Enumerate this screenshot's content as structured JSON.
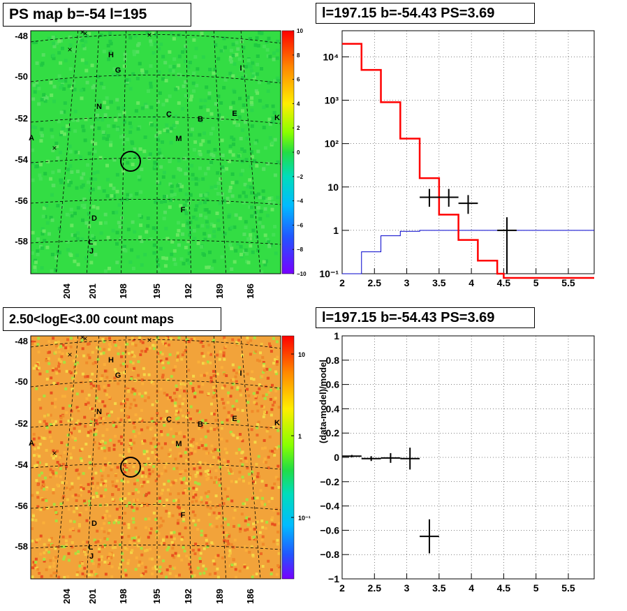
{
  "panels": {
    "ps_map_title": "PS map b=-54 l=195",
    "count_map_title": "2.50<logE<3.00 count maps",
    "spectrum_title": "l=197.15 b=-54.43 PS=3.69",
    "residual_title": "l=197.15 b=-54.43 PS=3.69"
  },
  "map_axes": {
    "y_ticks": [
      "-48",
      "-50",
      "-52",
      "-54",
      "-56",
      "-58"
    ],
    "x_ticks": [
      "204",
      "201",
      "198",
      "195",
      "192",
      "189",
      "186"
    ]
  },
  "source_labels": [
    "H",
    "G",
    "I",
    "N",
    "C",
    "B",
    "E",
    "K",
    "A",
    "M",
    "F",
    "D",
    "L",
    "J"
  ],
  "colors": {
    "model_line": "#ff0000",
    "second_model_line": "#0000cc",
    "data_marker": "#000000",
    "ps_map_background": "#33dd44",
    "count_map_background": "#f2a33a"
  },
  "ps_colorbar_ticks": [
    "10",
    "8",
    "6",
    "4",
    "2",
    "0",
    "−2",
    "−4",
    "−6",
    "−8",
    "−10"
  ],
  "count_colorbar_ticks": [
    "10",
    "1",
    "10⁻¹"
  ],
  "chart_data": [
    {
      "type": "histogram",
      "panel": "spectrum",
      "title": "l=197.15 b=-54.43 PS=3.69",
      "xlim": [
        2,
        5.9
      ],
      "ylog": true,
      "ylim": [
        0.1,
        40000
      ],
      "grid": true,
      "x_ticks": [
        "2",
        "2.5",
        "3",
        "3.5",
        "4",
        "4.5",
        "5",
        "5.5"
      ],
      "y_ticks": [
        {
          "value": 10000,
          "label": "10⁴"
        },
        {
          "value": 1000,
          "label": "10³"
        },
        {
          "value": 100,
          "label": "10²"
        },
        {
          "value": 10,
          "label": "10"
        },
        {
          "value": 1,
          "label": "1"
        },
        {
          "value": 0.1,
          "label": "10⁻¹"
        }
      ],
      "series": [
        {
          "style": "step-thick",
          "edges": [
            2,
            2.3,
            2.6,
            2.9,
            3.2,
            3.5,
            3.8,
            4.1,
            4.4,
            4.5,
            5.9
          ],
          "values": [
            20000,
            5000,
            900,
            130,
            16,
            2.3,
            0.6,
            0.2,
            0.1,
            0.08
          ]
        },
        {
          "style": "step-thin",
          "edges": [
            2,
            2.3,
            2.6,
            2.9,
            3.2,
            5.9
          ],
          "values": [
            0.1,
            0.32,
            0.75,
            0.95,
            1.0
          ]
        },
        {
          "style": "points",
          "x": [
            3.35,
            3.65,
            3.95,
            4.55
          ],
          "y": [
            5.8,
            5.8,
            4.2,
            1.0
          ],
          "xerr": [
            0.15,
            0.15,
            0.15,
            0.15
          ],
          "ylo": [
            3.5,
            3.5,
            2.4,
            0.1
          ],
          "yhi": [
            9.0,
            9.0,
            6.5,
            2.0
          ]
        }
      ]
    },
    {
      "type": "scatter",
      "panel": "residual",
      "title": "l=197.15 b=-54.43 PS=3.69",
      "ylabel": "(data-model)/model",
      "xlim": [
        2,
        5.9
      ],
      "ylim": [
        -1,
        1
      ],
      "grid": true,
      "x_ticks": [
        "2",
        "2.5",
        "3",
        "3.5",
        "4",
        "4.5",
        "5",
        "5.5"
      ],
      "y_ticks": [
        "1",
        "0.8",
        "0.6",
        "0.4",
        "0.2",
        "0",
        "−0.2",
        "−0.4",
        "−0.6",
        "−0.8",
        "−1"
      ],
      "points": {
        "x": [
          2.15,
          2.45,
          2.75,
          3.05,
          3.35
        ],
        "y": [
          0.01,
          -0.01,
          -0.005,
          -0.01,
          -0.65
        ],
        "xerr": [
          0.15,
          0.15,
          0.15,
          0.15,
          0.15
        ],
        "yerr": [
          0.01,
          0.02,
          0.04,
          0.09,
          0.14
        ]
      }
    }
  ]
}
